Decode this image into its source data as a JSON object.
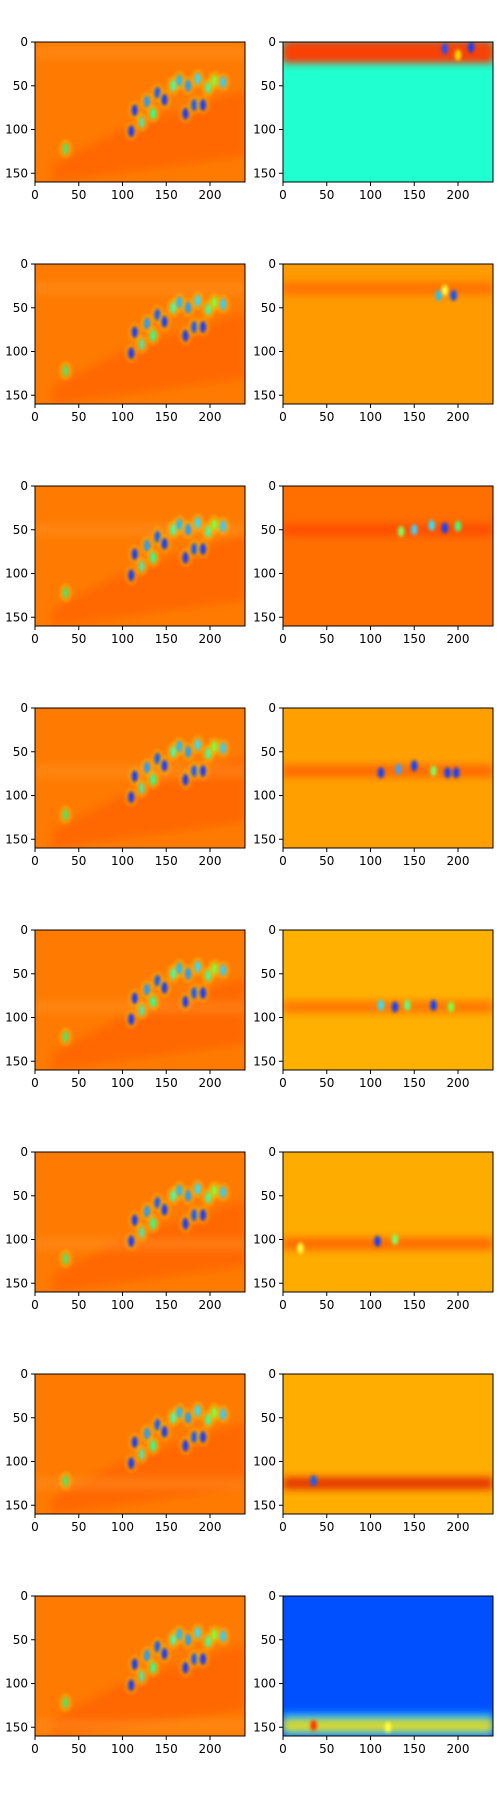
{
  "chart_data": {
    "type": "heatmap",
    "layout": "8 rows x 2 columns of image panels",
    "colormap": "jet",
    "image_shape": [
      160,
      240
    ],
    "x_ticks": [
      0,
      50,
      100,
      150,
      200
    ],
    "y_ticks": [
      0,
      50,
      100,
      150
    ],
    "xlim": [
      0,
      240
    ],
    "ylim": [
      160,
      0
    ],
    "left_column": {
      "description": "full feature map; orange field with diagonal cluster of blue/cyan blobs",
      "background": "#ff7a00",
      "blobs": [
        [
          110,
          102,
          "#1040ff"
        ],
        [
          114,
          78,
          "#1040ff"
        ],
        [
          122,
          92,
          "#60e0a0"
        ],
        [
          128,
          68,
          "#20a0ff"
        ],
        [
          135,
          82,
          "#30ff90"
        ],
        [
          140,
          58,
          "#1060ff"
        ],
        [
          148,
          66,
          "#1040ff"
        ],
        [
          158,
          50,
          "#40ffb0"
        ],
        [
          165,
          44,
          "#20c0ff"
        ],
        [
          172,
          82,
          "#1040ff"
        ],
        [
          175,
          50,
          "#20a0ff"
        ],
        [
          182,
          72,
          "#1060ff"
        ],
        [
          186,
          42,
          "#30e0ff"
        ],
        [
          192,
          72,
          "#1040ff"
        ],
        [
          198,
          52,
          "#40ffa0"
        ],
        [
          205,
          44,
          "#80ff40"
        ],
        [
          215,
          46,
          "#30d0ff"
        ],
        [
          35,
          122,
          "#60e060"
        ]
      ]
    },
    "right_column": [
      {
        "row_center": 12,
        "background": "#20ffd0",
        "band": "#ff4000",
        "band_color_top": "#ff3000",
        "blobs": [
          [
            185,
            8,
            "#2050ff"
          ],
          [
            215,
            6,
            "#1040ff"
          ],
          [
            200,
            15,
            "#ffe000"
          ]
        ]
      },
      {
        "row_center": 28,
        "background": "#ff9a00",
        "band": "#ff6a00",
        "blobs": [
          [
            178,
            36,
            "#20c0ff"
          ],
          [
            185,
            30,
            "#ffff40"
          ],
          [
            195,
            36,
            "#1050ff"
          ]
        ]
      },
      {
        "row_center": 50,
        "background": "#ff6f00",
        "band": "#ff4a00",
        "blobs": [
          [
            135,
            52,
            "#80ff60"
          ],
          [
            150,
            50,
            "#40d0ff"
          ],
          [
            170,
            45,
            "#30e0ff"
          ],
          [
            185,
            48,
            "#1040ff"
          ],
          [
            200,
            46,
            "#40ff80"
          ]
        ]
      },
      {
        "row_center": 72,
        "background": "#ffa000",
        "band": "#ff6000",
        "blobs": [
          [
            112,
            74,
            "#1040ff"
          ],
          [
            132,
            70,
            "#40a0ff"
          ],
          [
            150,
            66,
            "#1040ff"
          ],
          [
            172,
            72,
            "#80ff60"
          ],
          [
            188,
            74,
            "#1040ff"
          ],
          [
            198,
            74,
            "#1040ff"
          ]
        ]
      },
      {
        "row_center": 88,
        "background": "#ffb000",
        "band": "#ff7000",
        "blobs": [
          [
            112,
            86,
            "#30e0ff"
          ],
          [
            128,
            88,
            "#1040ff"
          ],
          [
            142,
            86,
            "#60ff80"
          ],
          [
            172,
            86,
            "#1040ff"
          ],
          [
            192,
            88,
            "#80ff40"
          ]
        ]
      },
      {
        "row_center": 105,
        "background": "#ffac00",
        "band": "#ff6000",
        "blobs": [
          [
            108,
            102,
            "#1040ff"
          ],
          [
            128,
            100,
            "#80ff60"
          ],
          [
            20,
            110,
            "#ffff40"
          ]
        ]
      },
      {
        "row_center": 125,
        "background": "#ffae00",
        "band": "#e02000",
        "blobs": [
          [
            35,
            122,
            "#1060ff"
          ]
        ]
      },
      {
        "row_center": 148,
        "background": "#0050ff",
        "band": "#ffe000",
        "band_color_top": "#30c0ff",
        "blobs": [
          [
            35,
            148,
            "#ff3000"
          ],
          [
            120,
            150,
            "#ffff40"
          ]
        ]
      }
    ]
  }
}
